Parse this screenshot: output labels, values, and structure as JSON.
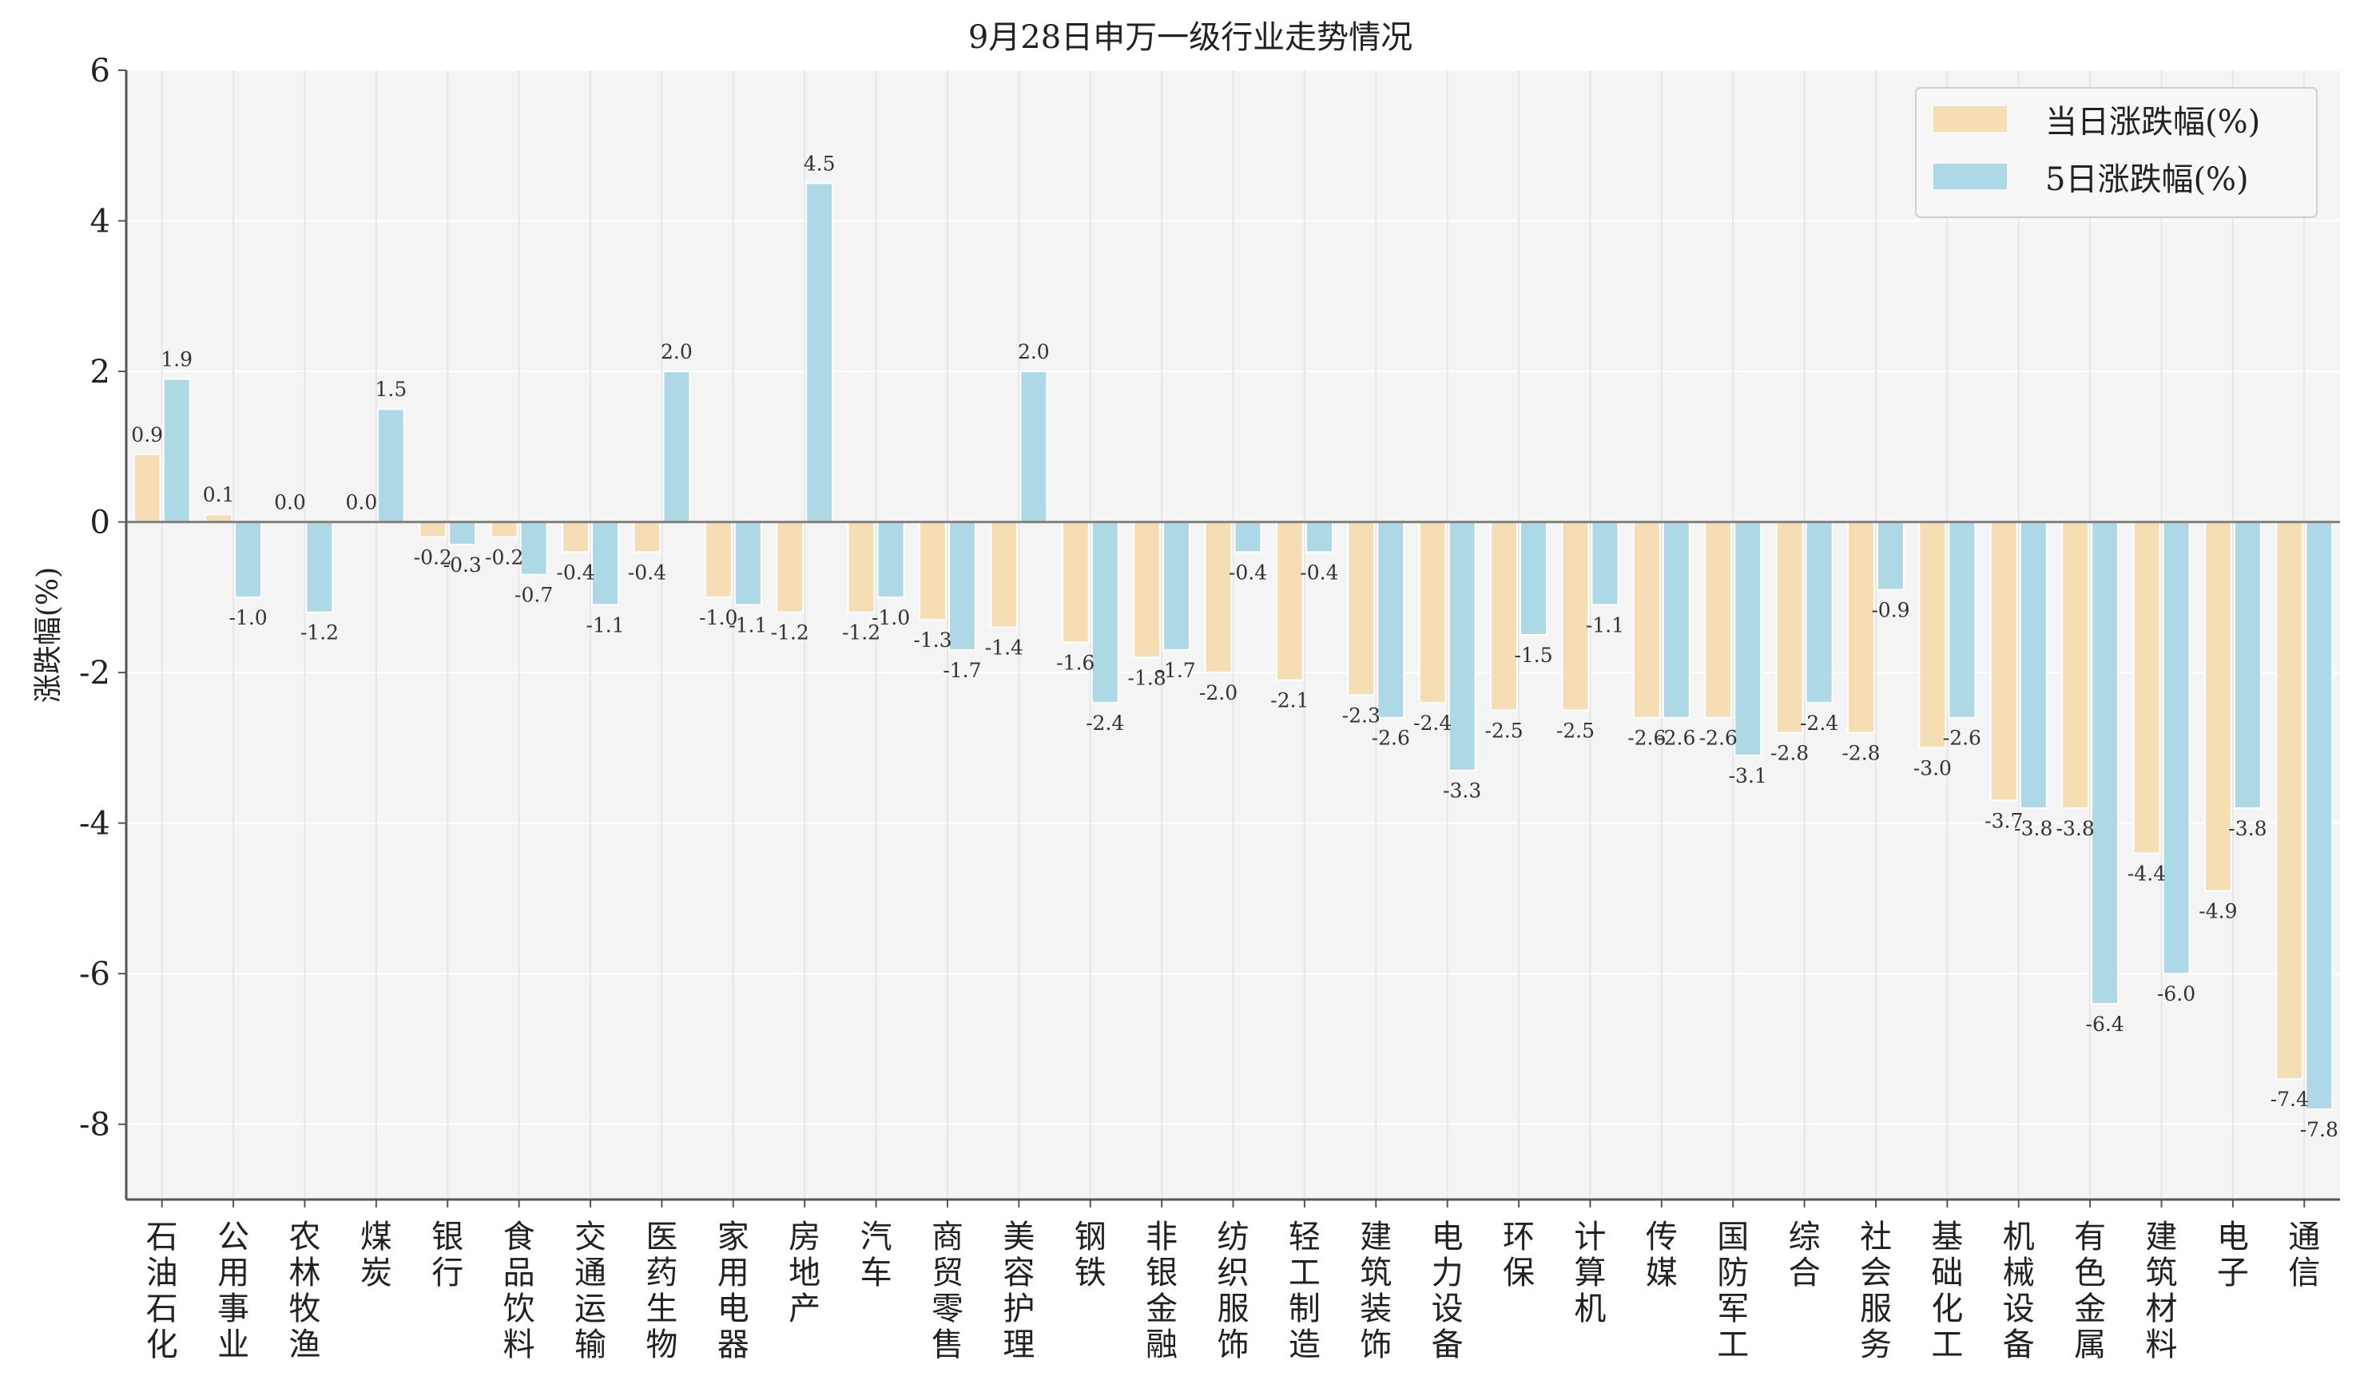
{
  "chart_data": {
    "type": "bar",
    "title": "9月28日申万一级行业走势情况",
    "ylabel": "涨跌幅(%)",
    "xlabel": "",
    "ylim": [
      -9,
      6
    ],
    "yticks": [
      6,
      4,
      2,
      0,
      -2,
      -4,
      -6,
      -8
    ],
    "grid": true,
    "legend_position": "top-right",
    "categories": [
      "石油石化",
      "公用事业",
      "农林牧渔",
      "煤炭",
      "银行",
      "食品饮料",
      "交通运输",
      "医药生物",
      "家用电器",
      "房地产",
      "汽车",
      "商贸零售",
      "美容护理",
      "钢铁",
      "非银金融",
      "纺织服饰",
      "轻工制造",
      "建筑装饰",
      "电力设备",
      "环保",
      "计算机",
      "传媒",
      "国防军工",
      "综合",
      "社会服务",
      "基础化工",
      "机械设备",
      "有色金属",
      "建筑材料",
      "电子",
      "通信"
    ],
    "series": [
      {
        "name": "当日涨跌幅(%)",
        "color": "#f5deb3",
        "values": [
          0.9,
          0.1,
          0.0,
          0.0,
          -0.2,
          -0.2,
          -0.4,
          -0.4,
          -1.0,
          -1.2,
          -1.2,
          -1.3,
          -1.4,
          -1.6,
          -1.8,
          -2.0,
          -2.1,
          -2.3,
          -2.4,
          -2.5,
          -2.5,
          -2.6,
          -2.6,
          -2.8,
          -2.8,
          -3.0,
          -3.7,
          -3.8,
          -4.4,
          -4.9,
          -7.4
        ]
      },
      {
        "name": "5日涨跌幅(%)",
        "color": "#add8e6",
        "values": [
          1.9,
          -1.0,
          -1.2,
          1.5,
          -0.3,
          -0.7,
          -1.1,
          2.0,
          -1.1,
          4.5,
          -1.0,
          -1.7,
          2.0,
          -2.4,
          -1.7,
          -0.4,
          -0.4,
          -2.6,
          -3.3,
          -1.5,
          -1.1,
          -2.6,
          -3.1,
          -2.4,
          -0.9,
          -2.6,
          -3.8,
          -6.4,
          -6.0,
          -3.8,
          -7.8
        ]
      }
    ]
  }
}
